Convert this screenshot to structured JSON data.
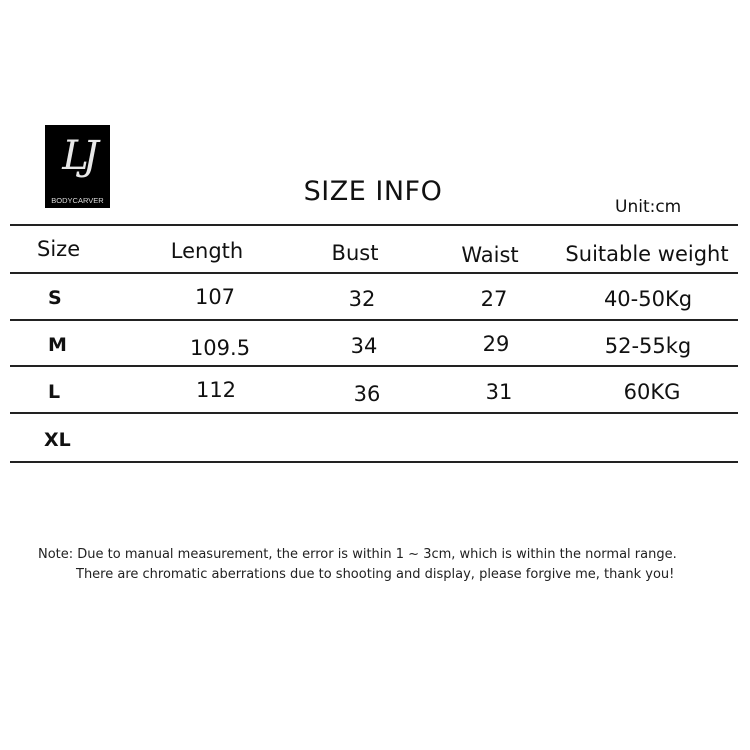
{
  "logo": {
    "monogram": "LJ",
    "brand": "BODYCARVER"
  },
  "title": "SIZE INFO",
  "unit": "Unit:cm",
  "table": {
    "headers": [
      "Size",
      "Length",
      "Bust",
      "Waist",
      "Suitable weight"
    ],
    "rows": [
      [
        "S",
        "107",
        "32",
        "27",
        "40-50Kg"
      ],
      [
        "M",
        "109.5",
        "34",
        "29",
        "52-55kg"
      ],
      [
        "L",
        "112",
        "36",
        "31",
        "60KG"
      ],
      [
        "XL",
        "",
        "",
        "",
        ""
      ]
    ]
  },
  "note": {
    "line1": "Note: Due to manual measurement, the error is within 1 ~ 3cm, which is within the normal range.",
    "line2": "There are chromatic aberrations due to shooting and display, please forgive me, thank you!"
  }
}
